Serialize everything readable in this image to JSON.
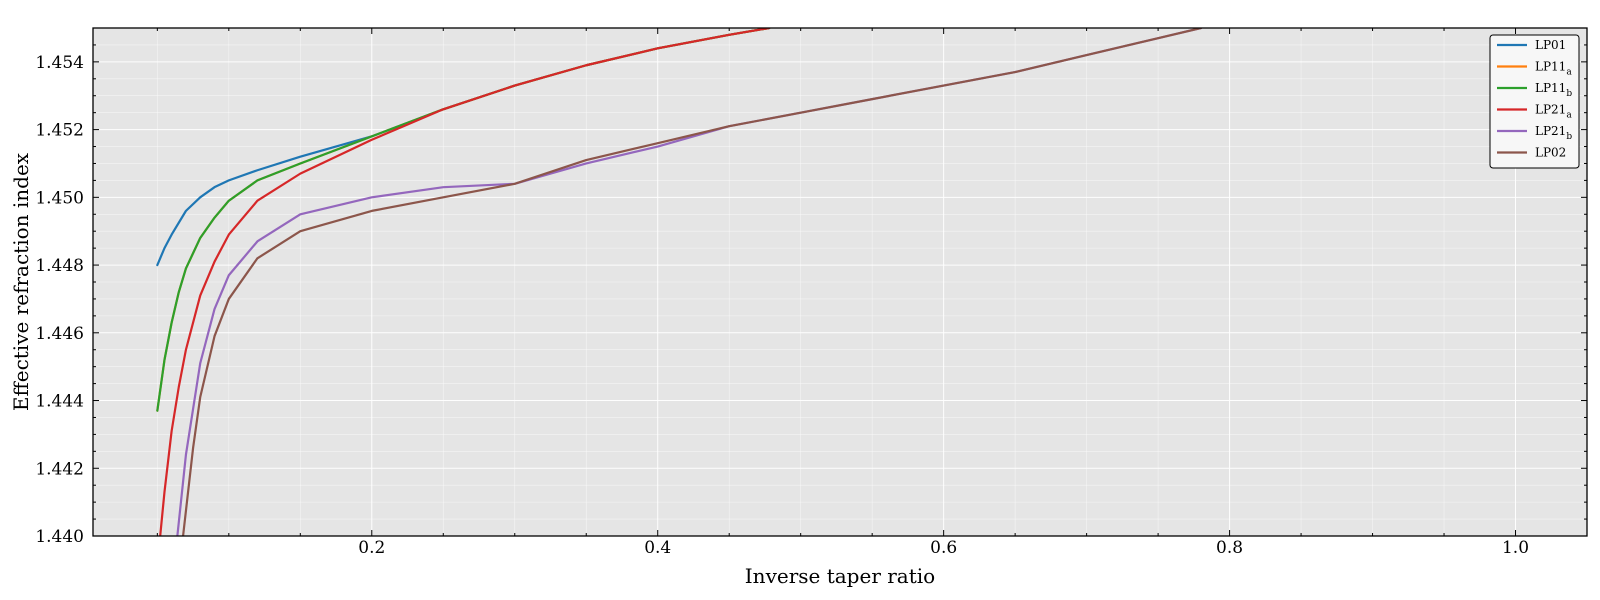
{
  "chart_data": {
    "type": "line",
    "title": "",
    "xlabel": "Inverse taper ratio",
    "ylabel": "Effective refraction index",
    "xlim": [
      0.005,
      1.05
    ],
    "ylim": [
      1.44,
      1.455
    ],
    "xticks": [
      0.2,
      0.4,
      0.6,
      0.8,
      1.0
    ],
    "xtick_labels": [
      "0.2",
      "0.4",
      "0.6",
      "0.8",
      "1.0"
    ],
    "yticks": [
      1.44,
      1.442,
      1.444,
      1.446,
      1.448,
      1.45,
      1.452,
      1.454
    ],
    "ytick_labels": [
      "1.440",
      "1.442",
      "1.444",
      "1.446",
      "1.448",
      "1.450",
      "1.452",
      "1.454"
    ],
    "grid": true,
    "background": "#e5e5e5",
    "legend_position": "top-right",
    "series": [
      {
        "name": "LP01",
        "label_base": "LP01",
        "label_sub": "",
        "color": "#1f77b4",
        "x": [
          0.05,
          0.055,
          0.06,
          0.07,
          0.08,
          0.09,
          0.1,
          0.12,
          0.15,
          0.2,
          0.25,
          0.3,
          0.35,
          0.4,
          0.45,
          0.478
        ],
        "y": [
          1.448,
          1.4485,
          1.4489,
          1.4496,
          1.45,
          1.4503,
          1.4505,
          1.4508,
          1.4512,
          1.4518,
          1.4526,
          1.4533,
          1.4539,
          1.4544,
          1.4548,
          1.455
        ]
      },
      {
        "name": "LP11",
        "label_base": "LP11",
        "label_sub": "a",
        "color": "#ff7f0e",
        "x": [
          0.05,
          0.055,
          0.06,
          0.065,
          0.07,
          0.08,
          0.09,
          0.1,
          0.12,
          0.15,
          0.2,
          0.25,
          0.3,
          0.35,
          0.4,
          0.45,
          0.478
        ],
        "y": [
          1.4437,
          1.4452,
          1.4463,
          1.4472,
          1.4479,
          1.4488,
          1.4494,
          1.4499,
          1.4505,
          1.451,
          1.4518,
          1.4526,
          1.4533,
          1.4539,
          1.4544,
          1.4548,
          1.455
        ]
      },
      {
        "name": "LP11",
        "label_base": "LP11",
        "label_sub": "b",
        "color": "#2ca02c",
        "x": [
          0.05,
          0.055,
          0.06,
          0.065,
          0.07,
          0.08,
          0.09,
          0.1,
          0.12,
          0.15,
          0.2,
          0.25,
          0.3,
          0.35,
          0.4,
          0.45,
          0.478
        ],
        "y": [
          1.4437,
          1.4452,
          1.4463,
          1.4472,
          1.4479,
          1.4488,
          1.4494,
          1.4499,
          1.4505,
          1.451,
          1.4518,
          1.4526,
          1.4533,
          1.4539,
          1.4544,
          1.4548,
          1.455
        ]
      },
      {
        "name": "LP21",
        "label_base": "LP21",
        "label_sub": "a",
        "color": "#d62728",
        "x": [
          0.052,
          0.055,
          0.06,
          0.065,
          0.07,
          0.08,
          0.09,
          0.1,
          0.12,
          0.15,
          0.2,
          0.25,
          0.3,
          0.35,
          0.4,
          0.45,
          0.478
        ],
        "y": [
          1.44,
          1.4413,
          1.4431,
          1.4444,
          1.4455,
          1.4471,
          1.4481,
          1.4489,
          1.4499,
          1.4507,
          1.4517,
          1.4526,
          1.4533,
          1.4539,
          1.4544,
          1.4548,
          1.455
        ]
      },
      {
        "name": "LP21",
        "label_base": "LP21",
        "label_sub": "b",
        "color": "#9467bd",
        "x": [
          0.064,
          0.07,
          0.08,
          0.09,
          0.1,
          0.12,
          0.15,
          0.2,
          0.25,
          0.3,
          0.35,
          0.4,
          0.45,
          0.5,
          0.55,
          0.6,
          0.65,
          0.7,
          0.75,
          0.78
        ],
        "y": [
          1.44,
          1.4424,
          1.4451,
          1.4467,
          1.4477,
          1.4487,
          1.4495,
          1.45,
          1.4503,
          1.4504,
          1.451,
          1.4515,
          1.4521,
          1.4525,
          1.4529,
          1.4533,
          1.4537,
          1.4542,
          1.4547,
          1.455
        ]
      },
      {
        "name": "LP02",
        "label_base": "LP02",
        "label_sub": "",
        "color": "#8c564b",
        "x": [
          0.068,
          0.075,
          0.08,
          0.09,
          0.1,
          0.12,
          0.15,
          0.2,
          0.25,
          0.3,
          0.35,
          0.4,
          0.45,
          0.5,
          0.55,
          0.6,
          0.65,
          0.7,
          0.75,
          0.78
        ],
        "y": [
          1.44,
          1.4426,
          1.4441,
          1.4459,
          1.447,
          1.4482,
          1.449,
          1.4496,
          1.45,
          1.4504,
          1.4511,
          1.4516,
          1.4521,
          1.4525,
          1.4529,
          1.4533,
          1.4537,
          1.4542,
          1.4547,
          1.455
        ]
      }
    ]
  }
}
